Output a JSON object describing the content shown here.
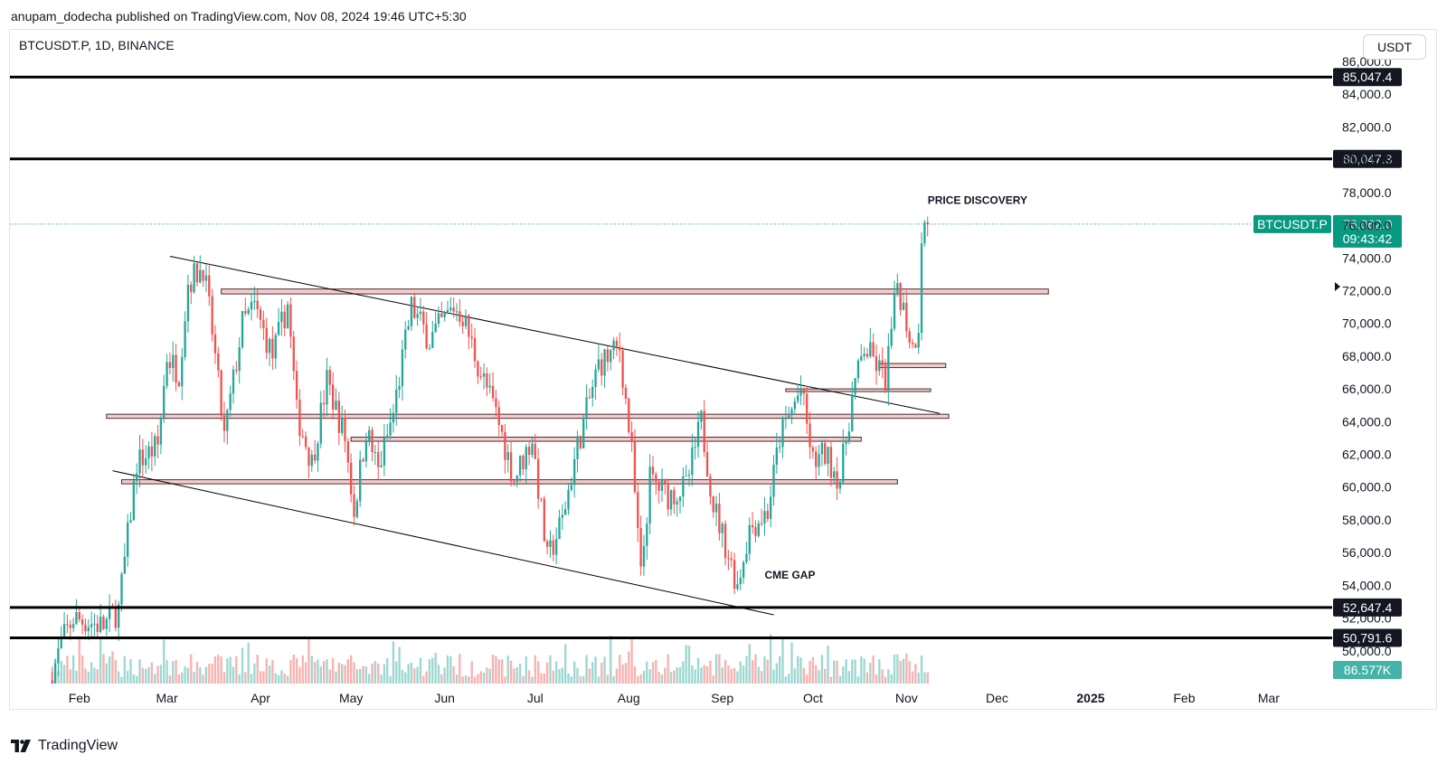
{
  "header": {
    "published_by": "anupam_dodecha published on TradingView.com, Nov 08, 2024 19:46 UTC+5:30"
  },
  "chart_header": {
    "symbol_info": "BTCUSDT.P, 1D, BINANCE",
    "currency": "USDT"
  },
  "footer": {
    "brand": "TradingView"
  },
  "colors": {
    "up": "#26a69a",
    "down": "#ef5350",
    "last_price": "#089981",
    "line": "#000000",
    "zone_fill": "#f3c4c8",
    "zone_stroke": "#4a2b2b"
  },
  "chart_data": {
    "type": "candlestick",
    "symbol": "BTCUSDT.P",
    "timeframe": "1D",
    "exchange": "BINANCE",
    "y_range": [
      48000,
      86000
    ],
    "y_ticks": [
      50000,
      52000,
      54000,
      56000,
      58000,
      60000,
      62000,
      64000,
      66000,
      68000,
      70000,
      72000,
      74000,
      76000,
      78000,
      80000,
      82000,
      84000,
      86000
    ],
    "x_range": [
      "2024-01-09",
      "2025-03-22"
    ],
    "x_ticks": [
      {
        "label": "Feb",
        "date": "2024-02-01"
      },
      {
        "label": "Mar",
        "date": "2024-03-01"
      },
      {
        "label": "Apr",
        "date": "2024-04-01"
      },
      {
        "label": "May",
        "date": "2024-05-01"
      },
      {
        "label": "Jun",
        "date": "2024-06-01"
      },
      {
        "label": "Jul",
        "date": "2024-07-01"
      },
      {
        "label": "Aug",
        "date": "2024-08-01"
      },
      {
        "label": "Sep",
        "date": "2024-09-01"
      },
      {
        "label": "Oct",
        "date": "2024-10-01"
      },
      {
        "label": "Nov",
        "date": "2024-11-01"
      },
      {
        "label": "Dec",
        "date": "2024-12-01"
      },
      {
        "label": "2025",
        "date": "2025-01-01",
        "bold": true
      },
      {
        "label": "Feb",
        "date": "2025-02-01"
      },
      {
        "label": "Mar",
        "date": "2025-03-01"
      }
    ],
    "price_path": [
      [
        "2024-01-23",
        48500
      ],
      [
        "2024-01-26",
        50500
      ],
      [
        "2024-01-30",
        52000
      ],
      [
        "2024-02-03",
        51800
      ],
      [
        "2024-02-09",
        51500
      ],
      [
        "2024-02-14",
        52500
      ],
      [
        "2024-02-20",
        61500
      ],
      [
        "2024-02-27",
        62500
      ],
      [
        "2024-03-01",
        68000
      ],
      [
        "2024-03-05",
        67000
      ],
      [
        "2024-03-08",
        72500
      ],
      [
        "2024-03-13",
        73500
      ],
      [
        "2024-03-16",
        69500
      ],
      [
        "2024-03-20",
        63000
      ],
      [
        "2024-03-26",
        70000
      ],
      [
        "2024-03-30",
        71000
      ],
      [
        "2024-04-05",
        68000
      ],
      [
        "2024-04-10",
        71200
      ],
      [
        "2024-04-13",
        64500
      ],
      [
        "2024-04-18",
        61500
      ],
      [
        "2024-04-23",
        66500
      ],
      [
        "2024-04-29",
        63000
      ],
      [
        "2024-05-02",
        58500
      ],
      [
        "2024-05-06",
        63500
      ],
      [
        "2024-05-10",
        61000
      ],
      [
        "2024-05-15",
        64500
      ],
      [
        "2024-05-21",
        71000
      ],
      [
        "2024-05-27",
        69000
      ],
      [
        "2024-06-04",
        71000
      ],
      [
        "2024-06-07",
        70500
      ],
      [
        "2024-06-12",
        67500
      ],
      [
        "2024-06-18",
        64500
      ],
      [
        "2024-06-24",
        60500
      ],
      [
        "2024-06-30",
        63000
      ],
      [
        "2024-07-05",
        55500
      ],
      [
        "2024-07-10",
        58000
      ],
      [
        "2024-07-15",
        62500
      ],
      [
        "2024-07-22",
        67500
      ],
      [
        "2024-07-29",
        68500
      ],
      [
        "2024-08-02",
        62000
      ],
      [
        "2024-08-05",
        54500
      ],
      [
        "2024-08-08",
        60500
      ],
      [
        "2024-08-14",
        59500
      ],
      [
        "2024-08-20",
        60000
      ],
      [
        "2024-08-25",
        64000
      ],
      [
        "2024-08-29",
        59000
      ],
      [
        "2024-09-06",
        54000
      ],
      [
        "2024-09-10",
        57500
      ],
      [
        "2024-09-16",
        58500
      ],
      [
        "2024-09-20",
        63000
      ],
      [
        "2024-09-27",
        66000
      ],
      [
        "2024-10-01",
        61500
      ],
      [
        "2024-10-05",
        62000
      ],
      [
        "2024-10-10",
        60500
      ],
      [
        "2024-10-14",
        65500
      ],
      [
        "2024-10-18",
        68500
      ],
      [
        "2024-10-22",
        67500
      ],
      [
        "2024-10-25",
        66500
      ],
      [
        "2024-10-29",
        72500
      ],
      [
        "2024-11-03",
        68500
      ],
      [
        "2024-11-05",
        70000
      ],
      [
        "2024-11-06",
        75500
      ],
      [
        "2024-11-08",
        76062
      ]
    ],
    "last_price": {
      "label": "BTCUSDT.P",
      "value": "76,062.0",
      "countdown": "09:43:42",
      "price": 76062
    },
    "horizontal_lines": [
      {
        "price": 85047.4,
        "label": "85,047.4"
      },
      {
        "price": 80047.3,
        "label": "80,047.3"
      },
      {
        "price": 52647.4,
        "label": "52,647.4"
      },
      {
        "price": 50791.6,
        "label": "50,791.6"
      }
    ],
    "zones": [
      {
        "from": "2024-03-19",
        "to": "2024-12-18",
        "low": 71800,
        "high": 72100
      },
      {
        "from": "2024-02-10",
        "to": "2024-11-15",
        "low": 64200,
        "high": 64450
      },
      {
        "from": "2024-05-01",
        "to": "2024-10-17",
        "low": 62800,
        "high": 63050
      },
      {
        "from": "2024-02-15",
        "to": "2024-10-29",
        "low": 60200,
        "high": 60450
      },
      {
        "from": "2024-09-22",
        "to": "2024-11-09",
        "low": 65850,
        "high": 66000
      },
      {
        "from": "2024-10-23",
        "to": "2024-11-14",
        "low": 67300,
        "high": 67550
      }
    ],
    "trendlines": [
      {
        "from": [
          "2024-03-02",
          74100
        ],
        "to": [
          "2024-11-12",
          64500
        ]
      },
      {
        "from": [
          "2024-02-12",
          61000
        ],
        "to": [
          "2024-09-18",
          52200
        ]
      }
    ],
    "annotations": [
      {
        "text": "PRICE DISCOVERY",
        "date": "2024-11-08",
        "price": 77300
      },
      {
        "text": "CME GAP",
        "date": "2024-09-15",
        "price": 54400
      }
    ],
    "volume": {
      "last_label": "86.577K",
      "max": 260000
    }
  }
}
